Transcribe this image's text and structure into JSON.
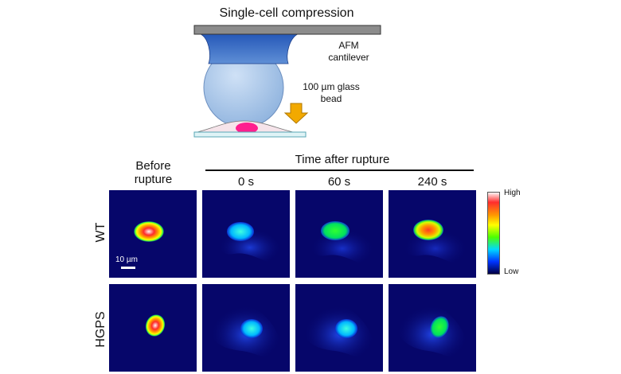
{
  "schematic": {
    "title": "Single-cell compression",
    "cantilever_label_line1": "AFM",
    "cantilever_label_line2": "cantilever",
    "bead_label_line1": "100 µm glass",
    "bead_label_line2": "bead"
  },
  "grid": {
    "time_header": "Time after rupture",
    "before_line1": "Before",
    "before_line2": "rupture",
    "columns": [
      "0 s",
      "60 s",
      "240 s"
    ],
    "rows": [
      "WT",
      "HGPS"
    ],
    "scale_bar_label": "10 µm"
  },
  "colorbar": {
    "high_label": "High",
    "low_label": "Low"
  },
  "colors": {
    "panel_background": "#06066a",
    "cantilever_plate": "#8c8c8c",
    "bead": "#a9c8ea",
    "arrow": "#f2a900",
    "nucleus_magenta": "#ff1f8e"
  }
}
